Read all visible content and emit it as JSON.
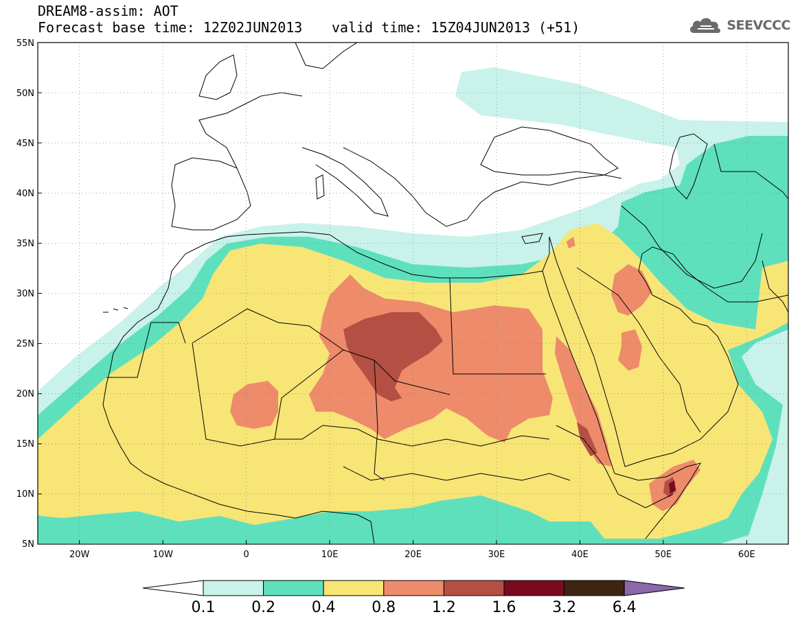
{
  "header": {
    "line1": "DREAM8-assim: AOT",
    "line2": "Forecast base time: 12Z02JUN2013",
    "valid_time": "valid time: 15Z04JUN2013 (+51)"
  },
  "logo": {
    "text": "SEEVCCC",
    "icon": "cloud-icon"
  },
  "axes": {
    "lat_labels": [
      "55N",
      "50N",
      "45N",
      "40N",
      "35N",
      "30N",
      "25N",
      "20N",
      "15N",
      "10N",
      "5N"
    ],
    "lon_labels": [
      "20W",
      "10W",
      "0",
      "10E",
      "20E",
      "30E",
      "40E",
      "50E",
      "60E"
    ],
    "lat_range": [
      5,
      55
    ],
    "lon_range": [
      -25,
      65
    ]
  },
  "colorbar": {
    "labels": [
      "0.1",
      "0.2",
      "0.4",
      "0.8",
      "1.2",
      "1.6",
      "3.2",
      "6.4"
    ],
    "colors": [
      "#c8f2ea",
      "#5ee0bd",
      "#f7e576",
      "#ed8b6a",
      "#b44f44",
      "#7a0a20",
      "#3f2412",
      "#8c68a8"
    ]
  },
  "palette": {
    "land_frame": "#000000",
    "aot_0_1": "#c8f2ea",
    "aot_0_2": "#5ee0bd",
    "aot_0_4": "#f7e576",
    "aot_0_8": "#ed8b6a",
    "aot_1_2": "#b44f44",
    "aot_1_6": "#7a0a20"
  }
}
